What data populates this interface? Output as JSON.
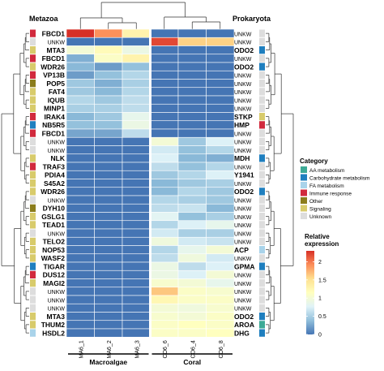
{
  "chart_data": {
    "type": "heatmap",
    "title": "",
    "column_labels": [
      "MA6_1",
      "MA6_2",
      "MA6_3",
      "CO6_6",
      "CO6_4",
      "CO6_8"
    ],
    "column_groups": [
      {
        "name": "Macroalgae",
        "columns": [
          0,
          1,
          2
        ]
      },
      {
        "name": "Coral",
        "columns": [
          3,
          4,
          5
        ]
      }
    ],
    "left_header": "Metazoa",
    "right_header": "Prokaryota",
    "rows": [
      {
        "left": "FBCD1",
        "right": "UNKW",
        "left_cat": "Immune response",
        "right_cat": "Unknown",
        "values": [
          2.4,
          1.9,
          1.3,
          0.0,
          0.0,
          0.0
        ]
      },
      {
        "left": "UNKW",
        "right": "UNKW",
        "left_cat": "Unknown",
        "right_cat": "Unknown",
        "values": [
          0.0,
          0.0,
          0.0,
          2.2,
          1.6,
          1.6
        ]
      },
      {
        "left": "MTA3",
        "right": "ODO2",
        "left_cat": "Signaling",
        "right_cat": "Carbohydrate metabolism",
        "values": [
          1.0,
          1.2,
          0.9,
          0.0,
          0.0,
          0.0
        ]
      },
      {
        "left": "FBCD1",
        "right": "UNKW",
        "left_cat": "Immune response",
        "right_cat": "Unknown",
        "values": [
          0.3,
          1.1,
          1.3,
          0.0,
          0.0,
          0.0
        ]
      },
      {
        "left": "WDR26",
        "right": "ODO2",
        "left_cat": "Signaling",
        "right_cat": "Carbohydrate metabolism",
        "values": [
          0.35,
          0.2,
          0.4,
          0.0,
          0.0,
          0.0
        ]
      },
      {
        "left": "VP13B",
        "right": "UNKW",
        "left_cat": "Immune response",
        "right_cat": "Unknown",
        "values": [
          0.2,
          0.4,
          0.55,
          0.0,
          0.0,
          0.0
        ]
      },
      {
        "left": "POP5",
        "right": "UNKW",
        "left_cat": "Other",
        "right_cat": "Unknown",
        "values": [
          0.45,
          0.3,
          0.5,
          0.0,
          0.0,
          0.0
        ]
      },
      {
        "left": "FAT4",
        "right": "UNKW",
        "left_cat": "Signaling",
        "right_cat": "Unknown",
        "values": [
          0.45,
          0.35,
          0.55,
          0.0,
          0.0,
          0.0
        ]
      },
      {
        "left": "IQUB",
        "right": "UNKW",
        "left_cat": "Signaling",
        "right_cat": "Unknown",
        "values": [
          0.55,
          0.45,
          0.6,
          0.0,
          0.0,
          0.0
        ]
      },
      {
        "left": "MINP1",
        "right": "UNKW",
        "left_cat": "Signaling",
        "right_cat": "Unknown",
        "values": [
          0.5,
          0.5,
          0.6,
          0.0,
          0.0,
          0.0
        ]
      },
      {
        "left": "IRAK4",
        "right": "STKP",
        "left_cat": "Immune response",
        "right_cat": "Signaling",
        "values": [
          0.35,
          0.45,
          0.85,
          0.0,
          0.0,
          0.0
        ]
      },
      {
        "left": "NB5R5",
        "right": "HMP",
        "left_cat": "Carbohydrate metabolism",
        "right_cat": "Immune response",
        "values": [
          0.4,
          0.4,
          0.9,
          0.0,
          0.0,
          0.0
        ]
      },
      {
        "left": "FBCD1",
        "right": "UNKW",
        "left_cat": "Immune response",
        "right_cat": "Unknown",
        "values": [
          0.25,
          0.25,
          0.6,
          0.0,
          0.0,
          0.0
        ]
      },
      {
        "left": "UNKW",
        "right": "UNKW",
        "left_cat": "Unknown",
        "right_cat": "Unknown",
        "values": [
          0.0,
          0.0,
          0.0,
          1.0,
          0.45,
          0.75
        ]
      },
      {
        "left": "UNKW",
        "right": "UNKW",
        "left_cat": "Unknown",
        "right_cat": "Unknown",
        "values": [
          0.0,
          0.0,
          0.0,
          0.7,
          0.4,
          0.55
        ]
      },
      {
        "left": "NLK",
        "right": "MDH",
        "left_cat": "Signaling",
        "right_cat": "Carbohydrate metabolism",
        "values": [
          0.0,
          0.0,
          0.0,
          0.75,
          0.35,
          0.3
        ]
      },
      {
        "left": "TRAF3",
        "right": "UNKW",
        "left_cat": "Immune response",
        "right_cat": "Unknown",
        "values": [
          0.0,
          0.0,
          0.0,
          0.6,
          0.4,
          0.55
        ]
      },
      {
        "left": "PDIA4",
        "right": "Y1941",
        "left_cat": "Signaling",
        "right_cat": "Unknown",
        "values": [
          0.0,
          0.0,
          0.0,
          0.45,
          0.55,
          0.75
        ]
      },
      {
        "left": "S45A2",
        "right": "UNKW",
        "left_cat": "Signaling",
        "right_cat": "Unknown",
        "values": [
          0.0,
          0.0,
          0.0,
          0.35,
          0.45,
          0.5
        ]
      },
      {
        "left": "WDR26",
        "right": "ODO2",
        "left_cat": "Signaling",
        "right_cat": "Carbohydrate metabolism",
        "values": [
          0.0,
          0.0,
          0.0,
          0.35,
          0.55,
          0.45
        ]
      },
      {
        "left": "UNKW",
        "right": "UNKW",
        "left_cat": "Unknown",
        "right_cat": "Unknown",
        "values": [
          0.0,
          0.0,
          0.0,
          0.55,
          0.5,
          0.45
        ]
      },
      {
        "left": "DYH10",
        "right": "UNKW",
        "left_cat": "Other",
        "right_cat": "Unknown",
        "values": [
          0.0,
          0.0,
          0.0,
          0.6,
          0.65,
          0.35
        ]
      },
      {
        "left": "GSLG1",
        "right": "UNKW",
        "left_cat": "Signaling",
        "right_cat": "Unknown",
        "values": [
          0.0,
          0.0,
          0.0,
          0.8,
          0.4,
          0.5
        ]
      },
      {
        "left": "TEAD1",
        "right": "UNKW",
        "left_cat": "Signaling",
        "right_cat": "Unknown",
        "values": [
          0.0,
          0.0,
          0.0,
          0.55,
          0.75,
          0.85
        ]
      },
      {
        "left": "UNKW",
        "right": "UNKW",
        "left_cat": "Unknown",
        "right_cat": "Unknown",
        "values": [
          0.0,
          0.0,
          0.0,
          0.7,
          0.5,
          0.5
        ]
      },
      {
        "left": "TELO2",
        "right": "UNKW",
        "left_cat": "Signaling",
        "right_cat": "Unknown",
        "values": [
          0.0,
          0.0,
          0.0,
          0.95,
          0.7,
          0.65
        ]
      },
      {
        "left": "NOP53",
        "right": "ACP",
        "left_cat": "Signaling",
        "right_cat": "FA metabolism",
        "values": [
          0.0,
          0.0,
          0.0,
          0.55,
          0.85,
          1.0
        ]
      },
      {
        "left": "WASF2",
        "right": "UNKW",
        "left_cat": "Signaling",
        "right_cat": "Unknown",
        "values": [
          0.0,
          0.0,
          0.0,
          0.6,
          0.95,
          0.7
        ]
      },
      {
        "left": "TIGAR",
        "right": "GPMA",
        "left_cat": "Carbohydrate metabolism",
        "right_cat": "Carbohydrate metabolism",
        "values": [
          0.0,
          0.0,
          0.0,
          0.9,
          0.6,
          0.75
        ]
      },
      {
        "left": "DUS12",
        "right": "UNKW",
        "left_cat": "Immune response",
        "right_cat": "Unknown",
        "values": [
          0.0,
          0.0,
          0.0,
          0.9,
          0.75,
          1.0
        ]
      },
      {
        "left": "MAGI2",
        "right": "UNKW",
        "left_cat": "Signaling",
        "right_cat": "Unknown",
        "values": [
          0.0,
          0.0,
          0.0,
          1.05,
          1.0,
          0.85
        ]
      },
      {
        "left": "UNKW",
        "right": "UNKW",
        "left_cat": "Unknown",
        "right_cat": "Unknown",
        "values": [
          0.0,
          0.0,
          0.0,
          1.65,
          1.1,
          1.05
        ]
      },
      {
        "left": "UNKW",
        "right": "UNKW",
        "left_cat": "Unknown",
        "right_cat": "Unknown",
        "values": [
          0.0,
          0.0,
          0.0,
          1.25,
          1.1,
          1.1
        ]
      },
      {
        "left": "UNKW",
        "right": "UNKW",
        "left_cat": "Unknown",
        "right_cat": "Unknown",
        "values": [
          0.0,
          0.0,
          0.0,
          1.0,
          0.95,
          1.05
        ]
      },
      {
        "left": "MTA3",
        "right": "ODO2",
        "left_cat": "Signaling",
        "right_cat": "Carbohydrate metabolism",
        "values": [
          0.0,
          0.0,
          0.0,
          1.05,
          1.0,
          1.1
        ]
      },
      {
        "left": "THUM2",
        "right": "AROA",
        "left_cat": "Signaling",
        "right_cat": "AA metabolism",
        "values": [
          0.0,
          0.0,
          0.0,
          1.1,
          1.15,
          1.1
        ]
      },
      {
        "left": "HSDL2",
        "right": "DHG",
        "left_cat": "FA metabolism",
        "right_cat": "Carbohydrate metabolism",
        "values": [
          0.0,
          0.0,
          0.0,
          1.1,
          1.1,
          1.15
        ]
      }
    ],
    "categories": [
      {
        "name": "AA metabolism",
        "color": "#3daa96"
      },
      {
        "name": "Carbohydrate metabolism",
        "color": "#1f7fbf"
      },
      {
        "name": "FA metabolism",
        "color": "#a9d3ea"
      },
      {
        "name": "Immune response",
        "color": "#d12a3d"
      },
      {
        "name": "Other",
        "color": "#8b7d1c"
      },
      {
        "name": "Signaling",
        "color": "#d8cb6b"
      },
      {
        "name": "Unknown",
        "color": "#dddddd"
      }
    ],
    "legend_category_title": "Category",
    "colorbar": {
      "title": "Relative expression",
      "min": 0,
      "max": 2.3,
      "ticks": [
        0,
        0.5,
        1,
        1.5,
        2
      ],
      "tick_labels": [
        "0",
        "0.5",
        "1",
        "1.5",
        "2"
      ],
      "colors": [
        "#4575b4",
        "#91bfdb",
        "#e0f3f8",
        "#ffffbf",
        "#fee090",
        "#fc8d59",
        "#d73027"
      ]
    }
  }
}
